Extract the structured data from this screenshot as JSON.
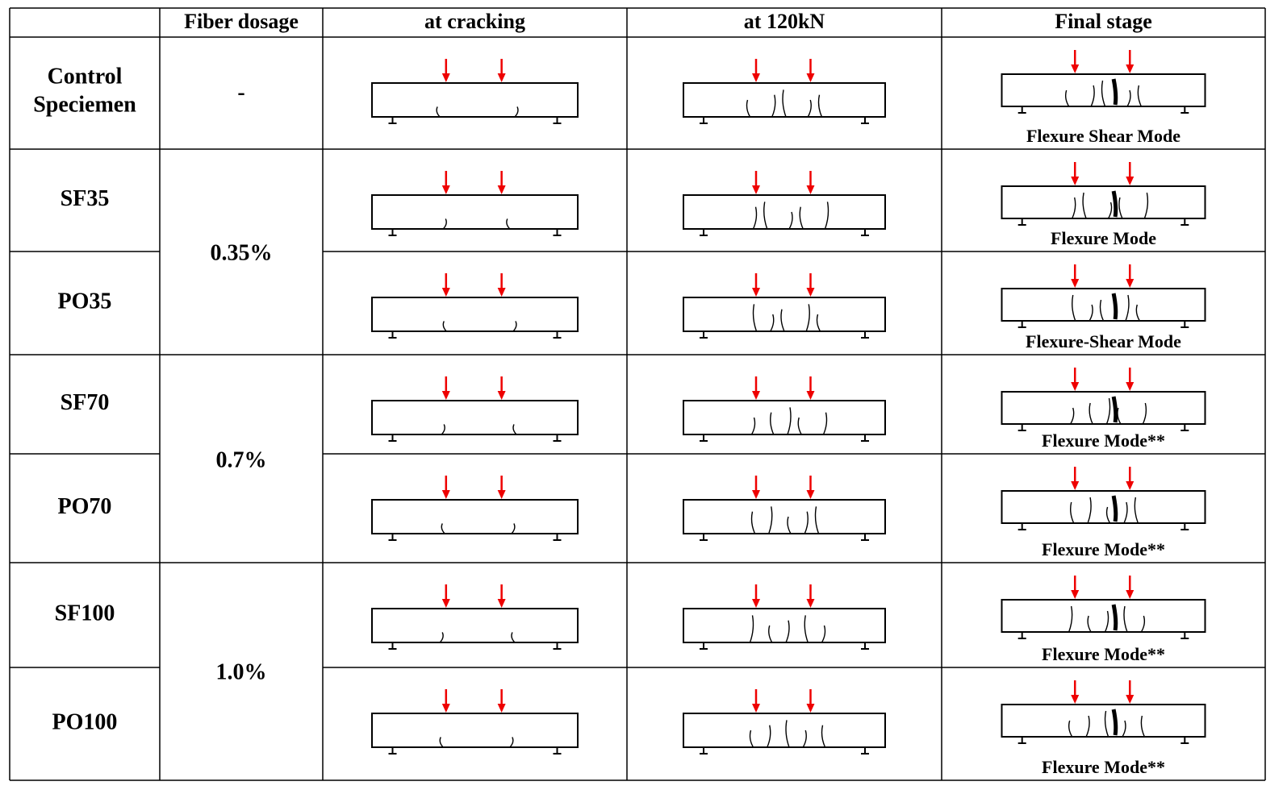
{
  "table": {
    "header": [
      "Fiber dosage",
      "at cracking",
      "at 120kN",
      "Final stage"
    ],
    "rows": [
      {
        "specimen": "Control Speciemen",
        "mode": "Flexure Shear Mode"
      },
      {
        "specimen": "SF35",
        "mode": "Flexure Mode"
      },
      {
        "specimen": "PO35",
        "mode": "Flexure-Shear Mode"
      },
      {
        "specimen": "SF70",
        "mode": "Flexure Mode**"
      },
      {
        "specimen": "PO70",
        "mode": "Flexure Mode**"
      },
      {
        "specimen": "SF100",
        "mode": "Flexure Mode**"
      },
      {
        "specimen": "PO100",
        "mode": "Flexure Mode**"
      }
    ],
    "dosages": [
      "-",
      "0.35%",
      "0.7%",
      "1.0%"
    ]
  }
}
